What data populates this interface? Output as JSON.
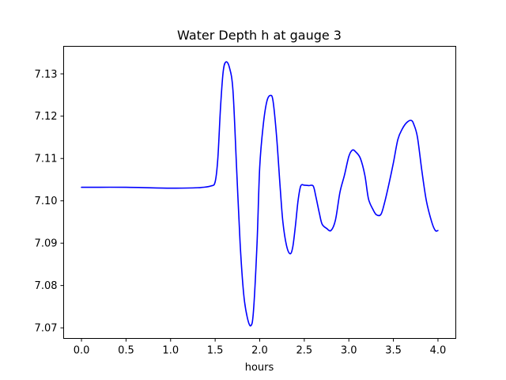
{
  "chart_data": {
    "type": "line",
    "title": "Water Depth h at gauge 3",
    "xlabel": "hours",
    "ylabel": "",
    "xlim": [
      -0.2,
      4.2
    ],
    "ylim": [
      7.0675,
      7.1365
    ],
    "xticks": [
      0.0,
      0.5,
      1.0,
      1.5,
      2.0,
      2.5,
      3.0,
      3.5,
      4.0
    ],
    "xtick_labels": [
      "0.0",
      "0.5",
      "1.0",
      "1.5",
      "2.0",
      "2.5",
      "3.0",
      "3.5",
      "4.0"
    ],
    "yticks": [
      7.07,
      7.08,
      7.09,
      7.1,
      7.11,
      7.12,
      7.13
    ],
    "ytick_labels": [
      "7.07",
      "7.08",
      "7.09",
      "7.10",
      "7.11",
      "7.12",
      "7.13"
    ],
    "grid": false,
    "legend": "none",
    "series": [
      {
        "color": "#0000ff",
        "x": [
          0.0,
          0.5,
          1.0,
          1.3,
          1.45,
          1.5,
          1.53,
          1.56,
          1.59,
          1.62,
          1.66,
          1.7,
          1.74,
          1.78,
          1.82,
          1.86,
          1.9,
          1.93,
          1.97,
          2.0,
          2.04,
          2.08,
          2.12,
          2.15,
          2.19,
          2.23,
          2.26,
          2.3,
          2.34,
          2.37,
          2.4,
          2.43,
          2.46,
          2.5,
          2.55,
          2.6,
          2.63,
          2.67,
          2.7,
          2.75,
          2.8,
          2.85,
          2.9,
          2.95,
          3.0,
          3.04,
          3.08,
          3.13,
          3.18,
          3.22,
          3.27,
          3.31,
          3.36,
          3.4,
          3.45,
          3.5,
          3.55,
          3.6,
          3.65,
          3.7,
          3.73,
          3.77,
          3.82,
          3.87,
          3.93,
          3.97,
          4.0
        ],
        "y": [
          7.1032,
          7.1032,
          7.103,
          7.1031,
          7.1035,
          7.1045,
          7.11,
          7.122,
          7.1305,
          7.1328,
          7.1315,
          7.126,
          7.108,
          7.09,
          7.078,
          7.0725,
          7.0705,
          7.074,
          7.09,
          7.108,
          7.118,
          7.1235,
          7.1249,
          7.1235,
          7.115,
          7.103,
          7.095,
          7.0895,
          7.0875,
          7.089,
          7.094,
          7.1,
          7.1035,
          7.1037,
          7.1036,
          7.1035,
          7.101,
          7.097,
          7.0945,
          7.0935,
          7.093,
          7.0955,
          7.102,
          7.106,
          7.1105,
          7.112,
          7.1115,
          7.11,
          7.106,
          7.1005,
          7.098,
          7.0967,
          7.0968,
          7.0995,
          7.104,
          7.109,
          7.1145,
          7.117,
          7.1185,
          7.119,
          7.118,
          7.115,
          7.107,
          7.1,
          7.095,
          7.093,
          7.093
        ]
      }
    ]
  }
}
